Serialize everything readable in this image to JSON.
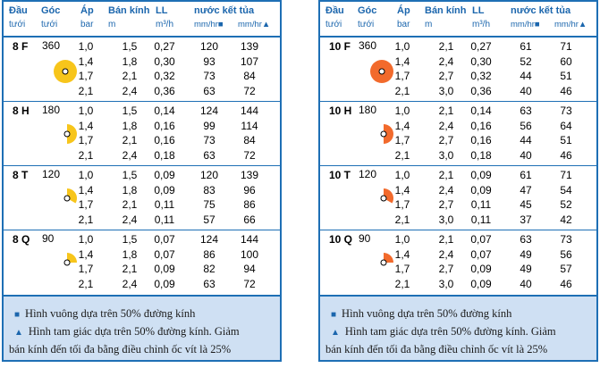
{
  "headers": {
    "nozzle": "Đầu",
    "nozzle_sub": "tưới",
    "angle": "Góc",
    "angle_sub": "tưới",
    "pressure": "Áp",
    "pressure_sub": "bar",
    "radius": "Bán kính",
    "radius_sub": "m",
    "flow": "LL",
    "flow_sub": "m³/h",
    "precip": "nước kết tủa",
    "precip_sq": "mm/hr■",
    "precip_tri": "mm/hr▲"
  },
  "left": {
    "groups": [
      {
        "name": "8 F",
        "angle": "360",
        "icon": "full-circle-nozzle",
        "rows": [
          [
            "1,0",
            "1,5",
            "0,27",
            "120",
            "139"
          ],
          [
            "1,4",
            "1,8",
            "0,30",
            "93",
            "107"
          ],
          [
            "1,7",
            "2,1",
            "0,32",
            "73",
            "84"
          ],
          [
            "2,1",
            "2,4",
            "0,36",
            "63",
            "72"
          ]
        ]
      },
      {
        "name": "8 H",
        "angle": "180",
        "icon": "half-circle-nozzle",
        "rows": [
          [
            "1,0",
            "1,5",
            "0,14",
            "124",
            "144"
          ],
          [
            "1,4",
            "1,8",
            "0,16",
            "99",
            "114"
          ],
          [
            "1,7",
            "2,1",
            "0,16",
            "73",
            "84"
          ],
          [
            "2,1",
            "2,4",
            "0,18",
            "63",
            "72"
          ]
        ]
      },
      {
        "name": "8 T",
        "angle": "120",
        "icon": "third-circle-nozzle",
        "rows": [
          [
            "1,0",
            "1,5",
            "0,09",
            "120",
            "139"
          ],
          [
            "1,4",
            "1,8",
            "0,09",
            "83",
            "96"
          ],
          [
            "1,7",
            "2,1",
            "0,11",
            "75",
            "86"
          ],
          [
            "2,1",
            "2,4",
            "0,11",
            "57",
            "66"
          ]
        ]
      },
      {
        "name": "8 Q",
        "angle": "90",
        "icon": "quarter-circle-nozzle",
        "rows": [
          [
            "1,0",
            "1,5",
            "0,07",
            "124",
            "144"
          ],
          [
            "1,4",
            "1,8",
            "0,07",
            "86",
            "100"
          ],
          [
            "1,7",
            "2,1",
            "0,09",
            "82",
            "94"
          ],
          [
            "2,1",
            "2,4",
            "0,09",
            "63",
            "72"
          ]
        ]
      }
    ],
    "icon_color": "#f7c51b"
  },
  "right": {
    "groups": [
      {
        "name": "10 F",
        "angle": "360",
        "icon": "full-circle-nozzle",
        "rows": [
          [
            "1,0",
            "2,1",
            "0,27",
            "61",
            "71"
          ],
          [
            "1,4",
            "2,4",
            "0,30",
            "52",
            "60"
          ],
          [
            "1,7",
            "2,7",
            "0,32",
            "44",
            "51"
          ],
          [
            "2,1",
            "3,0",
            "0,36",
            "40",
            "46"
          ]
        ]
      },
      {
        "name": "10 H",
        "angle": "180",
        "icon": "half-circle-nozzle",
        "rows": [
          [
            "1,0",
            "2,1",
            "0,14",
            "63",
            "73"
          ],
          [
            "1,4",
            "2,4",
            "0,16",
            "56",
            "64"
          ],
          [
            "1,7",
            "2,7",
            "0,16",
            "44",
            "51"
          ],
          [
            "2,1",
            "3,0",
            "0,18",
            "40",
            "46"
          ]
        ]
      },
      {
        "name": "10 T",
        "angle": "120",
        "icon": "third-circle-nozzle",
        "rows": [
          [
            "1,0",
            "2,1",
            "0,09",
            "61",
            "71"
          ],
          [
            "1,4",
            "2,4",
            "0,09",
            "47",
            "54"
          ],
          [
            "1,7",
            "2,7",
            "0,11",
            "45",
            "52"
          ],
          [
            "2,1",
            "3,0",
            "0,11",
            "37",
            "42"
          ]
        ]
      },
      {
        "name": "10 Q",
        "angle": "90",
        "icon": "quarter-circle-nozzle",
        "rows": [
          [
            "1,0",
            "2,1",
            "0,07",
            "63",
            "73"
          ],
          [
            "1,4",
            "2,4",
            "0,07",
            "49",
            "56"
          ],
          [
            "1,7",
            "2,7",
            "0,09",
            "49",
            "57"
          ],
          [
            "2,1",
            "3,0",
            "0,09",
            "40",
            "46"
          ]
        ]
      }
    ],
    "icon_color": "#f26a2c"
  },
  "footnotes": {
    "square_mark": "■",
    "square_note": "Hình vuông dựa trên 50% đường kính",
    "tri_mark": "▲",
    "tri_note_1": "Hình tam giác dựa trên 50% đường kính. Giảm",
    "tri_note_2": "bán kính đến tối đa bằng điều chỉnh ốc vít là 25%"
  }
}
